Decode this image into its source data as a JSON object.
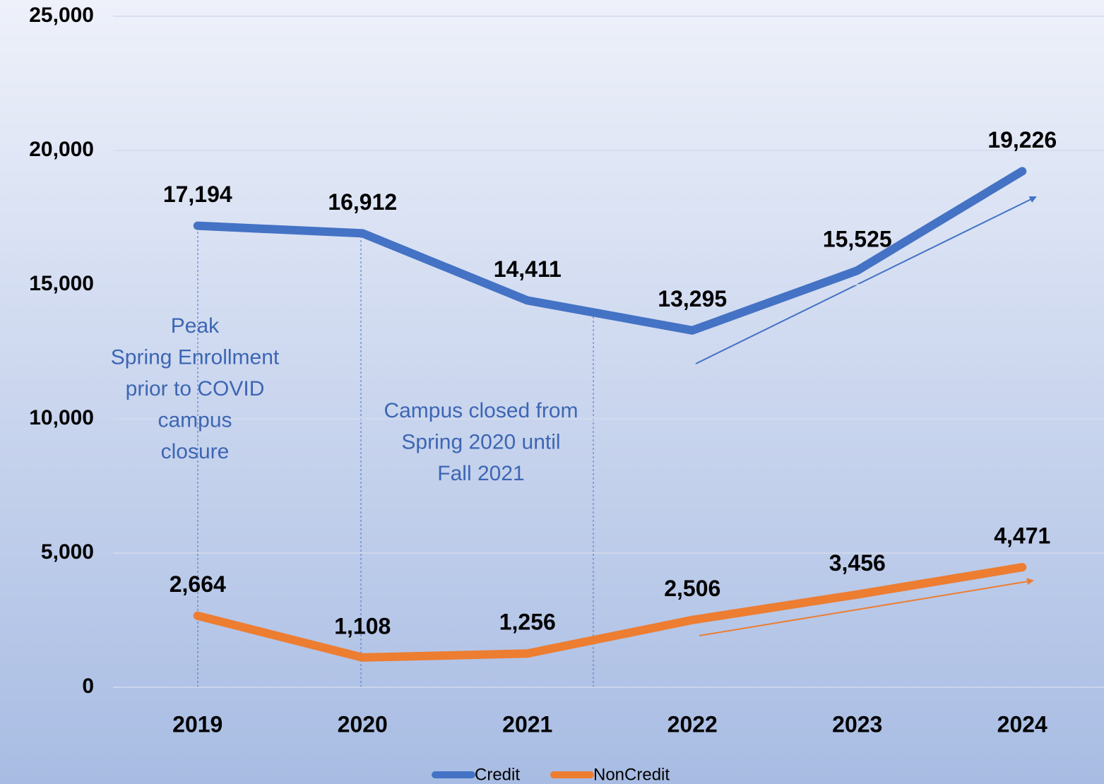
{
  "chart_data": {
    "type": "line",
    "categories": [
      "2019",
      "2020",
      "2021",
      "2022",
      "2023",
      "2024"
    ],
    "series": [
      {
        "name": "Credit",
        "color": "#4472c4",
        "values": [
          17194,
          16912,
          14411,
          13295,
          15525,
          19226
        ],
        "value_labels": [
          "17,194",
          "16,912",
          "14,411",
          "13,295",
          "15,525",
          "19,226"
        ]
      },
      {
        "name": "NonCredit",
        "color": "#ed7d31",
        "values": [
          2664,
          1108,
          1256,
          2506,
          3456,
          4471
        ],
        "value_labels": [
          "2,664",
          "1,108",
          "1,256",
          "2,506",
          "3,456",
          "4,471"
        ]
      }
    ],
    "ylim": [
      0,
      25000
    ],
    "yticks": [
      0,
      {
        "value": 5000,
        "label": "5,000"
      },
      {
        "value": 10000,
        "label": "10,000"
      },
      {
        "value": 15000,
        "label": "15,000"
      },
      {
        "value": 20000,
        "label": "20,000"
      },
      {
        "value": 25000,
        "label": "25,000"
      }
    ],
    "grid": true,
    "legend": "bottom",
    "annotations": [
      {
        "lines": [
          "Peak",
          "Spring Enrollment",
          "prior to COVID",
          "campus",
          "closure"
        ]
      },
      {
        "lines": [
          "Campus closed from",
          "Spring 2020 until",
          "Fall 2021"
        ]
      }
    ]
  }
}
